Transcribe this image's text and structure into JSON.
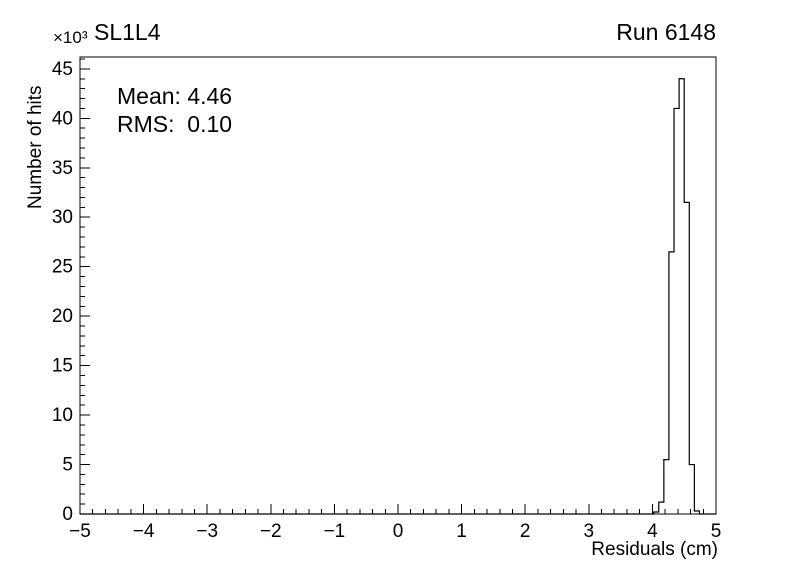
{
  "header": {
    "title": "SL1L4",
    "run_label": "Run 6148"
  },
  "stats": {
    "mean_label": "Mean: 4.46",
    "rms_label": "RMS:  0.10"
  },
  "chart_data": {
    "type": "bar",
    "subtype": "step-histogram",
    "title": "SL1L4",
    "run": "Run 6148",
    "xlabel": "Residuals (cm)",
    "ylabel": "Number of hits",
    "y_multiplier": "×10³",
    "xlim": [
      -5,
      5
    ],
    "ylim": [
      0,
      46.2
    ],
    "xticks": [
      -5,
      -4,
      -3,
      -2,
      -1,
      0,
      1,
      2,
      3,
      4,
      5
    ],
    "xtick_labels": [
      "−5",
      "−4",
      "−3",
      "−2",
      "−1",
      "0",
      "1",
      "2",
      "3",
      "4",
      "5"
    ],
    "yticks": [
      0,
      5,
      10,
      15,
      20,
      25,
      30,
      35,
      40,
      45
    ],
    "ytick_labels": [
      "0",
      "5",
      "10",
      "15",
      "20",
      "25",
      "30",
      "35",
      "40",
      "45"
    ],
    "x_minor_step": 0.2,
    "y_minor_step": 1,
    "bin_edges": [
      4.02,
      4.1,
      4.18,
      4.26,
      4.34,
      4.42,
      4.5,
      4.58,
      4.66,
      4.74
    ],
    "bin_values": [
      0.2,
      1.2,
      5.5,
      26.5,
      41.0,
      44.0,
      31.5,
      5.0,
      0.3
    ],
    "mean": 4.46,
    "rms": 0.1,
    "line_color": "#000000",
    "background": "#ffffff",
    "grid": false,
    "legend": false
  }
}
